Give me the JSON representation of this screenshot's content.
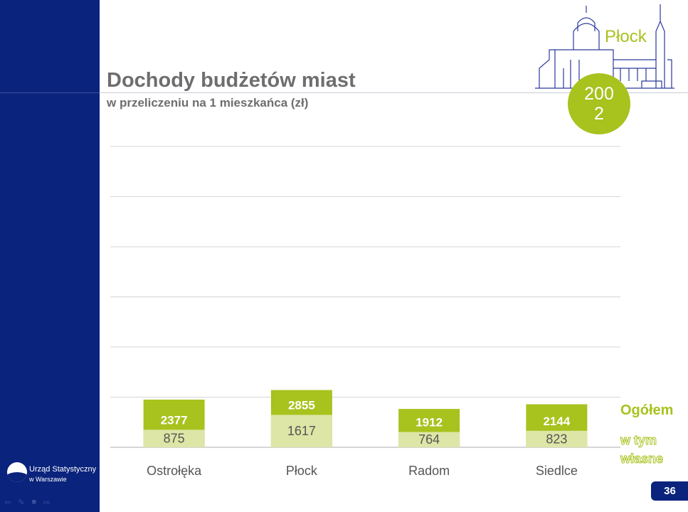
{
  "header": {
    "title": "Dochody budżetów miast",
    "subtitle": "w przeliczeniu na 1 mieszkańca (zł)",
    "city": "Płock",
    "year": "2002"
  },
  "legend": {
    "total": "Ogółem",
    "own": "w tym własne"
  },
  "footer": {
    "logo_line1": "Urząd Statystyczny",
    "logo_line2": "w Warszawie",
    "page_number": "36"
  },
  "colors": {
    "sidebar": "#0a237c",
    "accent_green": "#a8c21e",
    "light_green": "#dde6a6",
    "title_gray": "#6e6e6e"
  },
  "chart_data": {
    "type": "bar",
    "categories": [
      "Ostrołęka",
      "Płock",
      "Radom",
      "Siedlce"
    ],
    "series": [
      {
        "name": "Ogółem",
        "values": [
          2377,
          2855,
          1912,
          2144
        ]
      },
      {
        "name": "w tym własne",
        "values": [
          875,
          1617,
          764,
          823
        ]
      }
    ],
    "ylim": [
      0,
      15000
    ],
    "grid": true,
    "legend_position": "right"
  }
}
